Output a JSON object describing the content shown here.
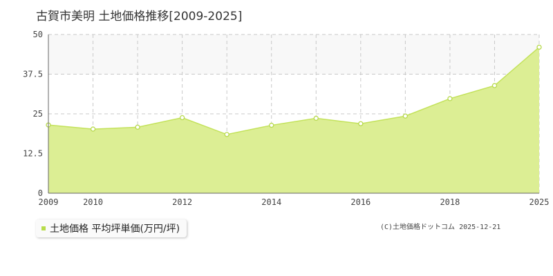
{
  "title": "古賀市美明 土地価格推移[2009-2025]",
  "legend": {
    "label": "土地価格 平均坪単価(万円/坪)"
  },
  "copyright": "(C)土地価格ドットコム 2025-12-21",
  "colors": {
    "area_fill": "#dcee94",
    "line": "#c3e25a",
    "point_stroke": "#b7d94c",
    "grid": "#c8c8c8",
    "band": "#f8f8f8"
  },
  "chart_data": {
    "type": "area",
    "x": [
      2009,
      2010,
      2011,
      2012,
      2013,
      2014,
      2015,
      2016,
      2017,
      2018,
      2019,
      2025
    ],
    "x_plot": [
      2009,
      2010,
      2011,
      2012,
      2013,
      2014,
      2015,
      2016,
      2017,
      2018,
      2019,
      2020
    ],
    "series": [
      {
        "name": "土地価格 平均坪単価(万円/坪)",
        "values": [
          21.5,
          20.2,
          20.8,
          23.8,
          18.5,
          21.4,
          23.6,
          21.9,
          24.3,
          29.8,
          33.9,
          46.0
        ]
      }
    ],
    "ylim": [
      0,
      50
    ],
    "yticks": [
      "0",
      "12.5",
      "25",
      "37.5",
      "50"
    ],
    "ytick_values": [
      0,
      12.5,
      25,
      37.5,
      50
    ],
    "xticks": [
      "2009",
      "2010",
      "2012",
      "2014",
      "2016",
      "2018",
      "2025"
    ],
    "xtick_positions": [
      2009,
      2010,
      2012,
      2014,
      2016,
      2018,
      2020
    ],
    "grid": true,
    "legend_position": "bottom-left"
  }
}
